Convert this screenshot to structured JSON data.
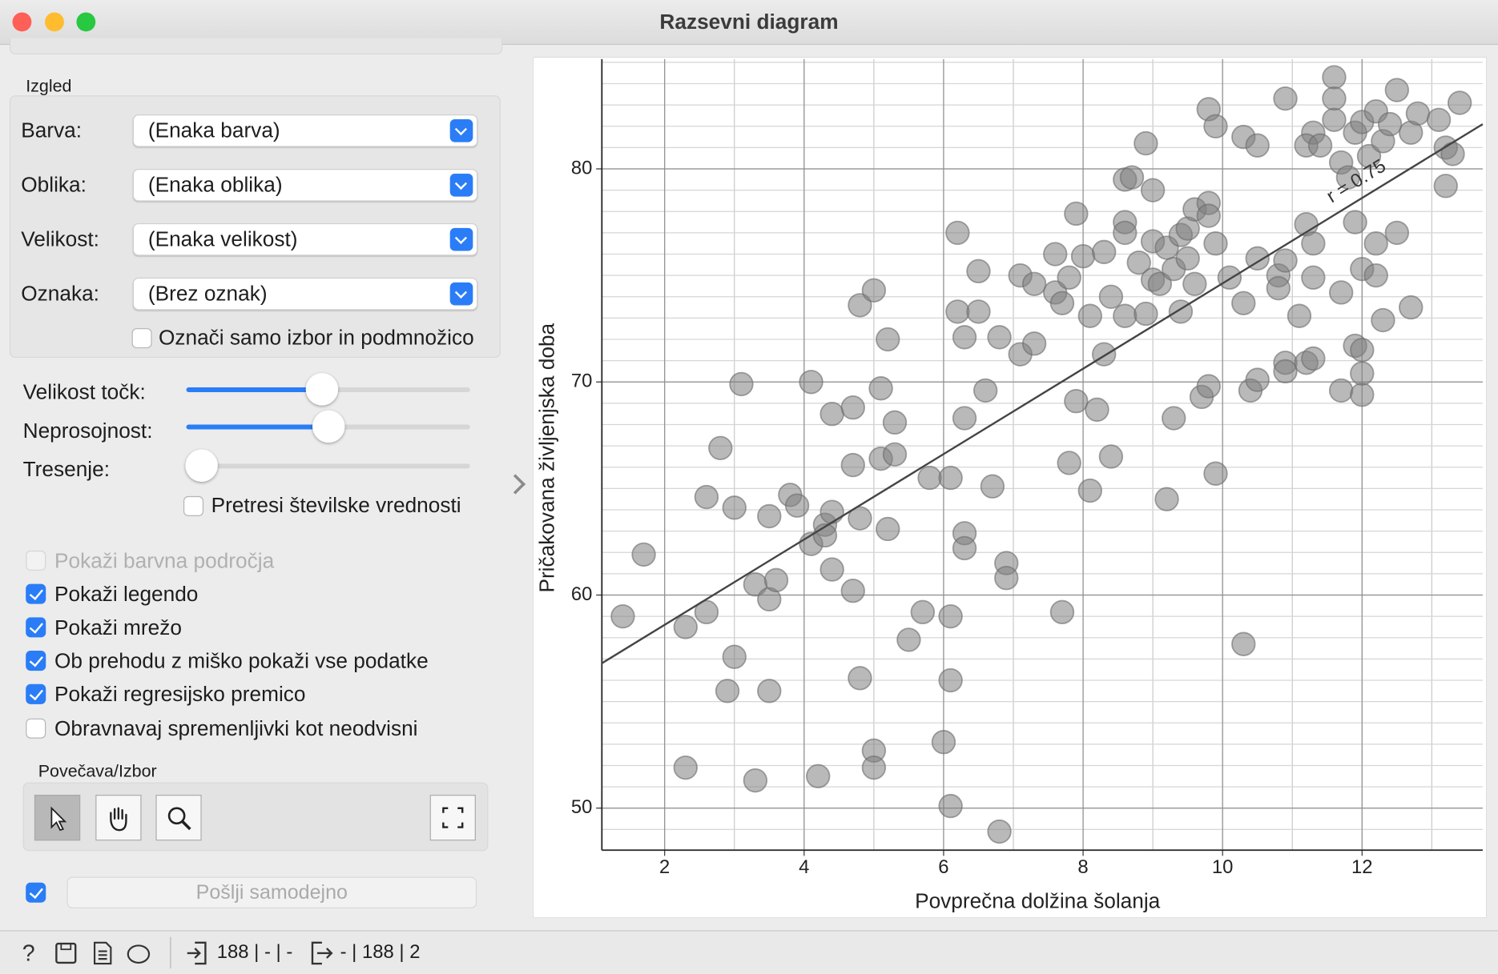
{
  "window": {
    "title": "Razsevni diagram"
  },
  "panel": {
    "group_title": "Izgled",
    "combos": [
      {
        "label": "Barva:",
        "value": "(Enaka barva)"
      },
      {
        "label": "Oblika:",
        "value": "(Enaka oblika)"
      },
      {
        "label": "Velikost:",
        "value": "(Enaka velikost)"
      },
      {
        "label": "Oznaka:",
        "value": "(Brez oznak)"
      }
    ],
    "subset_checkbox": {
      "label": "Označi samo izbor in podmnožico",
      "checked": false
    },
    "sliders": [
      {
        "label": "Velikost točk:"
      },
      {
        "label": "Neprosojnost:"
      },
      {
        "label": "Tresenje:"
      }
    ],
    "jitter_checkbox": {
      "label": "Pretresi številske vrednosti",
      "checked": false
    },
    "options": [
      {
        "label": "Pokaži barvna področja",
        "checked": false,
        "disabled": true
      },
      {
        "label": "Pokaži legendo",
        "checked": true
      },
      {
        "label": "Pokaži mrežo",
        "checked": true
      },
      {
        "label": "Ob prehodu z miško pokaži vse podatke",
        "checked": true
      },
      {
        "label": "Pokaži regresijsko premico",
        "checked": true
      },
      {
        "label": "Obravnavaj spremenljivki kot neodvisni",
        "checked": false
      }
    ],
    "zoom_title": "Povečava/Izbor",
    "auto_send": {
      "label": "Pošlji samodejno",
      "checked": true
    }
  },
  "status": {
    "input": "188 | - | -",
    "output": "- | 188 | 2"
  },
  "chart_data": {
    "type": "scatter",
    "x_label": "Povprečna dolžina šolanja",
    "y_label": "Pričakovana življenjska doba",
    "color": "#808080",
    "grid": true,
    "xlim": [
      1.1,
      13.73
    ],
    "ylim": [
      48.03,
      85.15
    ],
    "xticks": [
      2,
      4,
      6,
      8,
      10,
      12
    ],
    "yticks": [
      50,
      60,
      70,
      80
    ],
    "regression_line": {
      "x": [
        1.1,
        13.73
      ],
      "y": [
        56.8,
        82.1
      ]
    },
    "annotation": "r = 0.75",
    "x": [
      1.4,
      1.7,
      2.3,
      2.3,
      2.6,
      2.6,
      2.8,
      3.0,
      3.0,
      2.9,
      3.1,
      3.3,
      3.3,
      3.5,
      3.5,
      3.5,
      3.6,
      3.8,
      3.9,
      4.1,
      4.1,
      4.2,
      4.3,
      4.3,
      4.4,
      4.4,
      4.4,
      4.7,
      4.7,
      4.7,
      4.8,
      4.8,
      4.8,
      5.0,
      5.1,
      5.1,
      5.2,
      5.2,
      5.3,
      5.3,
      5.0,
      5.0,
      5.5,
      5.7,
      5.8,
      6.0,
      6.1,
      6.1,
      6.1,
      6.1,
      6.2,
      6.2,
      6.3,
      6.3,
      6.3,
      6.3,
      6.5,
      6.5,
      6.6,
      6.7,
      6.8,
      6.9,
      6.9,
      6.8,
      7.1,
      7.1,
      7.3,
      7.3,
      7.6,
      7.6,
      7.7,
      7.7,
      7.8,
      7.8,
      7.9,
      7.9,
      8.0,
      8.1,
      8.1,
      8.2,
      8.3,
      8.3,
      8.4,
      8.4,
      8.6,
      8.6,
      8.6,
      8.6,
      8.7,
      8.8,
      8.9,
      8.9,
      9.0,
      9.0,
      9.0,
      9.1,
      9.2,
      9.2,
      9.3,
      9.3,
      9.4,
      9.4,
      9.5,
      9.5,
      9.6,
      9.6,
      9.7,
      9.8,
      9.8,
      9.8,
      9.9,
      9.9,
      9.9,
      9.8,
      10.1,
      10.3,
      10.3,
      10.3,
      10.4,
      10.5,
      10.5,
      10.5,
      10.8,
      10.8,
      10.9,
      10.9,
      10.9,
      10.9,
      11.1,
      11.2,
      11.2,
      11.3,
      11.3,
      11.3,
      11.3,
      11.2,
      11.4,
      11.6,
      11.6,
      11.6,
      11.7,
      11.7,
      11.7,
      11.8,
      11.9,
      11.9,
      11.9,
      12.0,
      12.0,
      12.0,
      12.0,
      12.0,
      12.1,
      12.2,
      12.2,
      12.2,
      12.3,
      12.3,
      12.4,
      12.5,
      12.5,
      12.7,
      12.7,
      12.8,
      13.1,
      13.2,
      13.2,
      13.3,
      13.4
    ],
    "y": [
      59.0,
      61.9,
      58.5,
      51.9,
      59.2,
      64.6,
      66.9,
      64.1,
      57.1,
      55.5,
      69.9,
      60.5,
      51.3,
      63.7,
      59.8,
      55.5,
      60.7,
      64.7,
      64.2,
      70.0,
      62.4,
      51.5,
      63.3,
      62.8,
      63.9,
      68.5,
      61.2,
      60.2,
      68.8,
      66.1,
      73.6,
      63.6,
      56.1,
      74.3,
      69.7,
      66.4,
      72.0,
      63.1,
      68.1,
      66.6,
      52.7,
      51.9,
      57.9,
      59.2,
      65.5,
      53.1,
      59.0,
      56.0,
      50.1,
      65.5,
      77.0,
      73.3,
      72.1,
      68.3,
      62.9,
      62.2,
      73.3,
      75.2,
      69.6,
      65.1,
      72.1,
      61.5,
      60.8,
      48.9,
      71.3,
      75.0,
      71.8,
      74.6,
      76.0,
      74.2,
      73.7,
      59.2,
      66.2,
      74.9,
      77.9,
      69.1,
      75.9,
      73.1,
      64.9,
      68.7,
      71.3,
      76.1,
      74.0,
      66.5,
      79.5,
      77.5,
      77.0,
      73.1,
      79.6,
      75.6,
      81.2,
      73.2,
      79.0,
      76.6,
      74.8,
      74.6,
      64.5,
      76.3,
      75.3,
      68.3,
      73.3,
      76.9,
      77.2,
      75.8,
      74.6,
      78.1,
      69.3,
      82.8,
      78.4,
      77.8,
      82.0,
      76.5,
      65.7,
      69.8,
      74.9,
      81.5,
      73.7,
      57.7,
      69.6,
      81.1,
      75.8,
      70.1,
      75.0,
      74.4,
      83.3,
      75.7,
      70.9,
      70.5,
      73.1,
      77.4,
      70.9,
      76.5,
      71.1,
      74.9,
      81.7,
      81.1,
      81.1,
      84.3,
      83.3,
      82.3,
      74.2,
      80.3,
      69.6,
      79.6,
      77.5,
      71.7,
      81.7,
      82.2,
      75.3,
      69.4,
      71.5,
      70.4,
      80.6,
      82.7,
      76.5,
      75.0,
      72.9,
      81.3,
      82.1,
      83.7,
      77.0,
      73.5,
      81.7,
      82.6,
      82.3,
      79.2,
      81.0,
      80.7,
      83.1
    ]
  }
}
